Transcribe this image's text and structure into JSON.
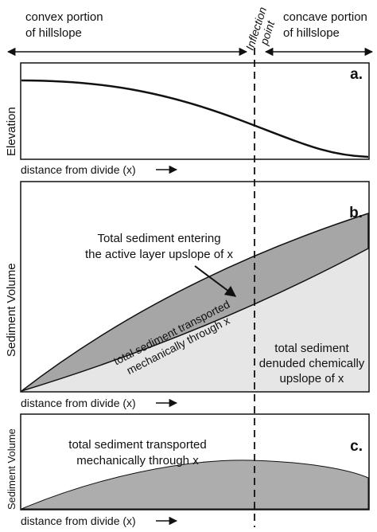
{
  "header": {
    "convex_line1": "convex portion",
    "convex_line2": "of hillslope",
    "inflection_line1": "Inflection",
    "inflection_line2": "point",
    "concave_line1": "concave portion",
    "concave_line2": "of hillslope"
  },
  "panel_a": {
    "letter": "a.",
    "ylabel": "Elevation",
    "xlabel": "distance from divide (x)"
  },
  "panel_b": {
    "letter": "b.",
    "ylabel": "Sediment Volume",
    "xlabel": "distance from divide (x)",
    "callout_line1": "Total sediment entering",
    "callout_line2": "the active layer upslope of x",
    "band_line1": "total sediment transported",
    "band_line2": "mechanically through x",
    "chem_line1": "total sediment",
    "chem_line2": "denuded chemically",
    "chem_line3": "upslope of x"
  },
  "panel_c": {
    "letter": "c.",
    "ylabel": "Sediment Volume",
    "xlabel": "distance from divide (x)",
    "label_line1": "total sediment transported",
    "label_line2": "mechanically through x"
  },
  "colors": {
    "band_fill": "#a6a6a6",
    "chem_fill": "#e6e6e6",
    "c_fill": "#adadad",
    "stroke": "#111111"
  }
}
